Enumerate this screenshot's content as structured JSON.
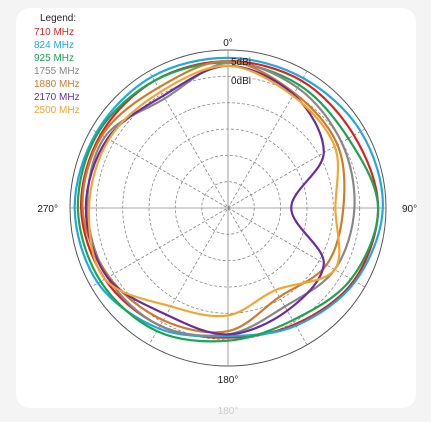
{
  "chart_data": {
    "type": "polar",
    "title": "",
    "angle_labels": [
      {
        "angle": 0,
        "label": "0°"
      },
      {
        "angle": 90,
        "label": "90°"
      },
      {
        "angle": 180,
        "label": "180°"
      },
      {
        "angle": 270,
        "label": "270°"
      }
    ],
    "footer_label": "180°",
    "radial_labels": [
      "5dBi",
      "0dBi"
    ],
    "radial_range_rings": 6,
    "angular_grid_step_deg": 30,
    "grid": true,
    "legend": {
      "title": "Legend:",
      "placement": "top-left",
      "entries": [
        "710 MHz",
        "824 MHz",
        "925 MHz",
        "1755 MHz",
        "1880 MHz",
        "2170 MHz",
        "2500 MHz"
      ]
    },
    "series": [
      {
        "name": "710 MHz",
        "color": "#e02020",
        "angles": [
          0,
          30,
          60,
          90,
          120,
          150,
          180,
          210,
          240,
          270,
          300,
          330
        ],
        "r": [
          0.93,
          0.93,
          0.92,
          0.95,
          0.92,
          0.85,
          0.82,
          0.86,
          0.9,
          0.93,
          0.93,
          0.93
        ]
      },
      {
        "name": "824 MHz",
        "color": "#1fa9df",
        "angles": [
          0,
          30,
          60,
          90,
          120,
          150,
          180,
          210,
          240,
          270,
          300,
          330
        ],
        "r": [
          0.95,
          0.95,
          0.97,
          0.98,
          0.93,
          0.86,
          0.81,
          0.88,
          0.95,
          0.97,
          0.96,
          0.96
        ]
      },
      {
        "name": "925 MHz",
        "color": "#1aa64e",
        "angles": [
          0,
          30,
          60,
          90,
          120,
          150,
          180,
          210,
          240,
          270,
          300,
          330
        ],
        "r": [
          0.92,
          0.9,
          0.88,
          0.95,
          0.9,
          0.82,
          0.84,
          0.9,
          0.93,
          0.95,
          0.95,
          0.93
        ]
      },
      {
        "name": "1755 MHz",
        "color": "#888888",
        "angles": [
          0,
          30,
          60,
          90,
          120,
          150,
          180,
          210,
          240,
          270,
          300,
          330
        ],
        "r": [
          0.92,
          0.88,
          0.83,
          0.8,
          0.78,
          0.72,
          0.8,
          0.86,
          0.88,
          0.89,
          0.9,
          0.8
        ]
      },
      {
        "name": "1880 MHz",
        "color": "#cf7a2e",
        "angles": [
          0,
          30,
          60,
          90,
          120,
          150,
          180,
          210,
          240,
          270,
          300,
          330
        ],
        "r": [
          0.93,
          0.84,
          0.8,
          0.73,
          0.72,
          0.65,
          0.78,
          0.82,
          0.87,
          0.92,
          0.92,
          0.88
        ]
      },
      {
        "name": "2170 MHz",
        "color": "#6a2da0",
        "angles": [
          0,
          30,
          60,
          90,
          120,
          150,
          180,
          210,
          240,
          270,
          300,
          330
        ],
        "r": [
          0.9,
          0.83,
          0.7,
          0.4,
          0.7,
          0.75,
          0.8,
          0.78,
          0.88,
          0.9,
          0.88,
          0.82
        ]
      },
      {
        "name": "2500 MHz",
        "color": "#f3a52e",
        "angles": [
          0,
          30,
          60,
          90,
          120,
          150,
          180,
          210,
          240,
          270,
          300,
          330
        ],
        "r": [
          0.9,
          0.82,
          0.78,
          0.68,
          0.78,
          0.6,
          0.68,
          0.72,
          0.9,
          0.88,
          0.87,
          0.85
        ]
      }
    ]
  }
}
